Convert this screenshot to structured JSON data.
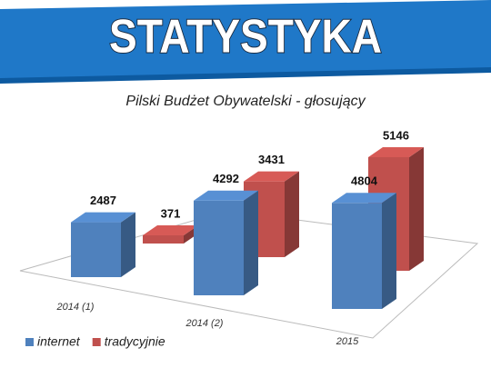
{
  "banner": "STATYSTYKA",
  "chart_data": {
    "type": "bar3d",
    "title": "Pilski Budżet Obywatelski - głosujący",
    "categories": [
      "2014 (1)",
      "2014 (2)",
      "2015"
    ],
    "series": [
      {
        "name": "internet",
        "color": "#4f81bd",
        "values": [
          2487,
          4292,
          4804
        ]
      },
      {
        "name": "tradycyjnie",
        "color": "#c0504d",
        "values": [
          371,
          3431,
          5146
        ]
      }
    ],
    "legend": "bottom-left"
  }
}
